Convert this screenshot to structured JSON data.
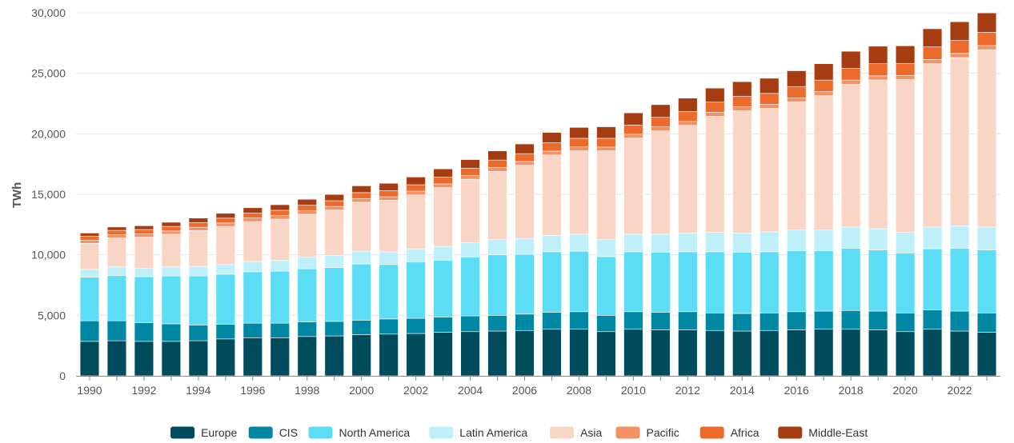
{
  "chart_data": {
    "type": "bar",
    "stacked": true,
    "title": "",
    "xlabel": "",
    "ylabel": "TWh",
    "ylim": [
      0,
      30000
    ],
    "yticks": [
      0,
      5000,
      10000,
      15000,
      20000,
      25000,
      30000
    ],
    "ytick_labels": [
      "0",
      "5,000",
      "10,000",
      "15,000",
      "20,000",
      "25,000",
      "30,000"
    ],
    "xtick_labels": [
      "1990",
      "1992",
      "1994",
      "1996",
      "1998",
      "2000",
      "2002",
      "2004",
      "2006",
      "2008",
      "2010",
      "2012",
      "2014",
      "2016",
      "2018",
      "2020",
      "2022"
    ],
    "grid": "horizontal",
    "legend_position": "bottom",
    "categories": [
      "1990",
      "1991",
      "1992",
      "1993",
      "1994",
      "1995",
      "1996",
      "1997",
      "1998",
      "1999",
      "2000",
      "2001",
      "2002",
      "2003",
      "2004",
      "2005",
      "2006",
      "2007",
      "2008",
      "2009",
      "2010",
      "2011",
      "2012",
      "2013",
      "2014",
      "2015",
      "2016",
      "2017",
      "2018",
      "2019",
      "2020",
      "2021",
      "2022",
      "2023"
    ],
    "series": [
      {
        "name": "Europe",
        "color": "#004b5c",
        "values": [
          2850,
          2900,
          2850,
          2850,
          2900,
          3050,
          3150,
          3150,
          3250,
          3300,
          3400,
          3450,
          3500,
          3600,
          3650,
          3700,
          3750,
          3850,
          3850,
          3650,
          3850,
          3800,
          3800,
          3750,
          3700,
          3750,
          3800,
          3850,
          3850,
          3800,
          3650,
          3850,
          3700,
          3600
        ]
      },
      {
        "name": "CIS",
        "color": "#0087a3",
        "values": [
          1700,
          1650,
          1550,
          1450,
          1300,
          1200,
          1200,
          1200,
          1200,
          1200,
          1200,
          1250,
          1250,
          1250,
          1300,
          1300,
          1350,
          1400,
          1450,
          1350,
          1450,
          1450,
          1500,
          1450,
          1450,
          1450,
          1500,
          1500,
          1550,
          1550,
          1550,
          1600,
          1650,
          1600
        ]
      },
      {
        "name": "North America",
        "color": "#5ddcf5",
        "values": [
          3600,
          3750,
          3800,
          3950,
          4050,
          4150,
          4250,
          4300,
          4400,
          4450,
          4650,
          4500,
          4650,
          4700,
          4850,
          5000,
          4950,
          5000,
          5000,
          4850,
          4950,
          4950,
          4950,
          5050,
          5050,
          5050,
          5050,
          5000,
          5150,
          5050,
          4950,
          5050,
          5200,
          5200
        ]
      },
      {
        "name": "Latin America",
        "color": "#bff0fa",
        "values": [
          650,
          700,
          700,
          750,
          800,
          800,
          850,
          900,
          950,
          1000,
          1050,
          1050,
          1100,
          1150,
          1200,
          1250,
          1300,
          1350,
          1400,
          1400,
          1450,
          1500,
          1550,
          1600,
          1600,
          1650,
          1700,
          1700,
          1750,
          1750,
          1700,
          1800,
          1850,
          1900
        ]
      },
      {
        "name": "Asia",
        "color": "#f8d5c4",
        "values": [
          2150,
          2400,
          2550,
          2700,
          2950,
          3150,
          3300,
          3400,
          3550,
          3750,
          4050,
          4250,
          4450,
          4850,
          5250,
          5650,
          6050,
          6650,
          6900,
          7350,
          7950,
          8550,
          8900,
          9600,
          10100,
          10200,
          10600,
          11100,
          11800,
          12300,
          12650,
          13500,
          13900,
          14650
        ]
      },
      {
        "name": "Pacific",
        "color": "#f29066",
        "values": [
          250,
          260,
          270,
          270,
          280,
          280,
          290,
          290,
          290,
          300,
          300,
          300,
          310,
          310,
          310,
          310,
          310,
          320,
          320,
          310,
          320,
          320,
          330,
          330,
          330,
          330,
          330,
          330,
          340,
          340,
          330,
          340,
          340,
          340
        ]
      },
      {
        "name": "Africa",
        "color": "#ed6a2d",
        "values": [
          350,
          360,
          370,
          380,
          390,
          400,
          420,
          440,
          460,
          470,
          490,
          510,
          530,
          560,
          590,
          620,
          650,
          690,
          710,
          720,
          760,
          790,
          820,
          850,
          880,
          910,
          930,
          960,
          980,
          1000,
          990,
          1040,
          1070,
          1100
        ]
      },
      {
        "name": "Middle-East",
        "color": "#a63c12",
        "values": [
          250,
          280,
          310,
          340,
          370,
          400,
          430,
          460,
          490,
          520,
          560,
          600,
          640,
          680,
          720,
          760,
          800,
          850,
          900,
          950,
          1000,
          1050,
          1100,
          1150,
          1200,
          1250,
          1300,
          1350,
          1400,
          1450,
          1450,
          1500,
          1550,
          1600
        ]
      }
    ]
  }
}
